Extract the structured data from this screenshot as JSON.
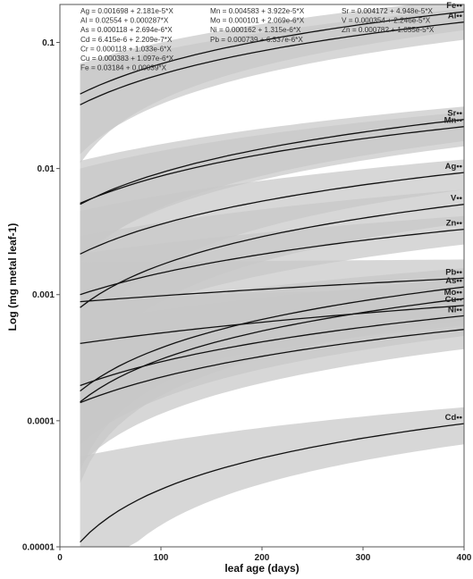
{
  "chart_data": {
    "type": "line",
    "xlabel": "leaf age (days)",
    "ylabel": "Log (mg metal leaf-1)",
    "x_ticks": [
      0,
      100,
      200,
      300,
      400
    ],
    "xlim": [
      0,
      400
    ],
    "y_ticks": [
      "0.00001",
      "0.0001",
      "0.001",
      "0.01",
      "0.1"
    ],
    "y_tick_values": [
      1e-05,
      0.0001,
      0.001,
      0.01,
      0.1
    ],
    "ylim": [
      1e-05,
      0.2
    ],
    "y_scale": "log",
    "grid": false,
    "x_range_data": [
      20,
      400
    ],
    "band_color": "#c8c8c8",
    "line_color": "#111111",
    "equations": [
      [
        "Ag = 0.001698 + 2.181e-5*X",
        "Al = 0.02554 + 0.000287*X",
        "As = 0.000118 + 2.694e-6*X",
        "Cd = 6.415e-6 + 2.209e-7*X",
        "Cr = 0.000118 + 1.033e-6*X",
        "Cu = 0.000383 + 1.097e-6*X",
        "Fe = 0.03184 + 0.00039*X"
      ],
      [
        "Mn = 0.004583 + 3.922e-5*X",
        "Mo = 0.000101 + 2.069e-6*X",
        "Ni = 0.000162 + 1.315e-6*X",
        "Pb = 0.000739 + 6.337e-6*X"
      ],
      [
        "Sr = 0.004172 + 4.948e-5*X",
        "V = 0.000354 + 2.246e-5*X",
        "Zn = 0.000782 + 1.055e-5*X"
      ]
    ],
    "series": [
      {
        "name": "Fe",
        "label": "Fe••",
        "y_start": 0.039,
        "y_end": 0.175,
        "band_low_start": 0.011,
        "band_low_end": 0.125,
        "band_high_start": 0.068,
        "band_high_end": 0.22
      },
      {
        "name": "Al",
        "label": "Al••",
        "y_start": 0.032,
        "y_end": 0.145,
        "band_low_start": 0.013,
        "band_low_end": 0.105,
        "band_high_start": 0.06,
        "band_high_end": 0.185
      },
      {
        "name": "Sr",
        "label": "Sr••",
        "y_start": 0.0052,
        "y_end": 0.0245,
        "band_low_start": 0.0018,
        "band_low_end": 0.0165,
        "band_high_start": 0.0115,
        "band_high_end": 0.031
      },
      {
        "name": "Mn",
        "label": "Mn••",
        "y_start": 0.0053,
        "y_end": 0.0215,
        "band_low_start": 0.002,
        "band_low_end": 0.015,
        "band_high_start": 0.01,
        "band_high_end": 0.028
      },
      {
        "name": "Ag",
        "label": "Ag••",
        "y_start": 0.0021,
        "y_end": 0.0093,
        "band_low_start": 0.0003,
        "band_low_end": 0.0068,
        "band_high_start": 0.0046,
        "band_high_end": 0.0118
      },
      {
        "name": "V",
        "label": "V••",
        "y_start": 0.00079,
        "y_end": 0.0052,
        "band_low_start": 0.00014,
        "band_low_end": 0.0037,
        "band_high_start": 0.0029,
        "band_high_end": 0.0068
      },
      {
        "name": "Zn",
        "label": "Zn••",
        "y_start": 0.001,
        "y_end": 0.0033,
        "band_low_start": 0.00045,
        "band_low_end": 0.0025,
        "band_high_start": 0.0021,
        "band_high_end": 0.0042
      },
      {
        "name": "Pb",
        "label": "Pb••",
        "y_start": 0.00088,
        "y_end": 0.00135,
        "band_low_start": 0.00042,
        "band_low_end": 0.00092,
        "band_high_start": 0.0018,
        "band_high_end": 0.0019
      },
      {
        "name": "As",
        "label": "As••",
        "y_start": 0.000172,
        "y_end": 0.00115,
        "band_low_start": 4e-05,
        "band_low_end": 0.00078,
        "band_high_start": 0.00072,
        "band_high_end": 0.00162
      },
      {
        "name": "Mo",
        "label": "Mo••",
        "y_start": 0.000141,
        "y_end": 0.00093,
        "band_low_start": 3.2e-05,
        "band_low_end": 0.00063,
        "band_high_start": 0.0006,
        "band_high_end": 0.00132
      },
      {
        "name": "Cu",
        "label": "Cu••",
        "y_start": 0.00041,
        "y_end": 0.00082,
        "band_low_start": 0.00017,
        "band_low_end": 0.00057,
        "band_high_start": 0.00092,
        "band_high_end": 0.00115
      },
      {
        "name": "Ni",
        "label": "Ni••",
        "y_start": 0.00019,
        "y_end": 0.00068,
        "band_low_start": 6.5e-05,
        "band_low_end": 0.00047,
        "band_high_start": 0.00054,
        "band_high_end": 0.00094
      },
      {
        "name": "Cr",
        "label": "",
        "y_start": 0.000139,
        "y_end": 0.00053,
        "band_low_start": 4.5e-05,
        "band_low_end": 0.00037,
        "band_high_start": 0.00043,
        "band_high_end": 0.00073
      },
      {
        "name": "Cd",
        "label": "Cd••",
        "y_start": 1.09e-05,
        "y_end": 9.48e-05,
        "band_low_start": 1.5e-06,
        "band_low_end": 6.5e-05,
        "band_high_start": 5.2e-05,
        "band_high_end": 0.000128
      }
    ]
  }
}
